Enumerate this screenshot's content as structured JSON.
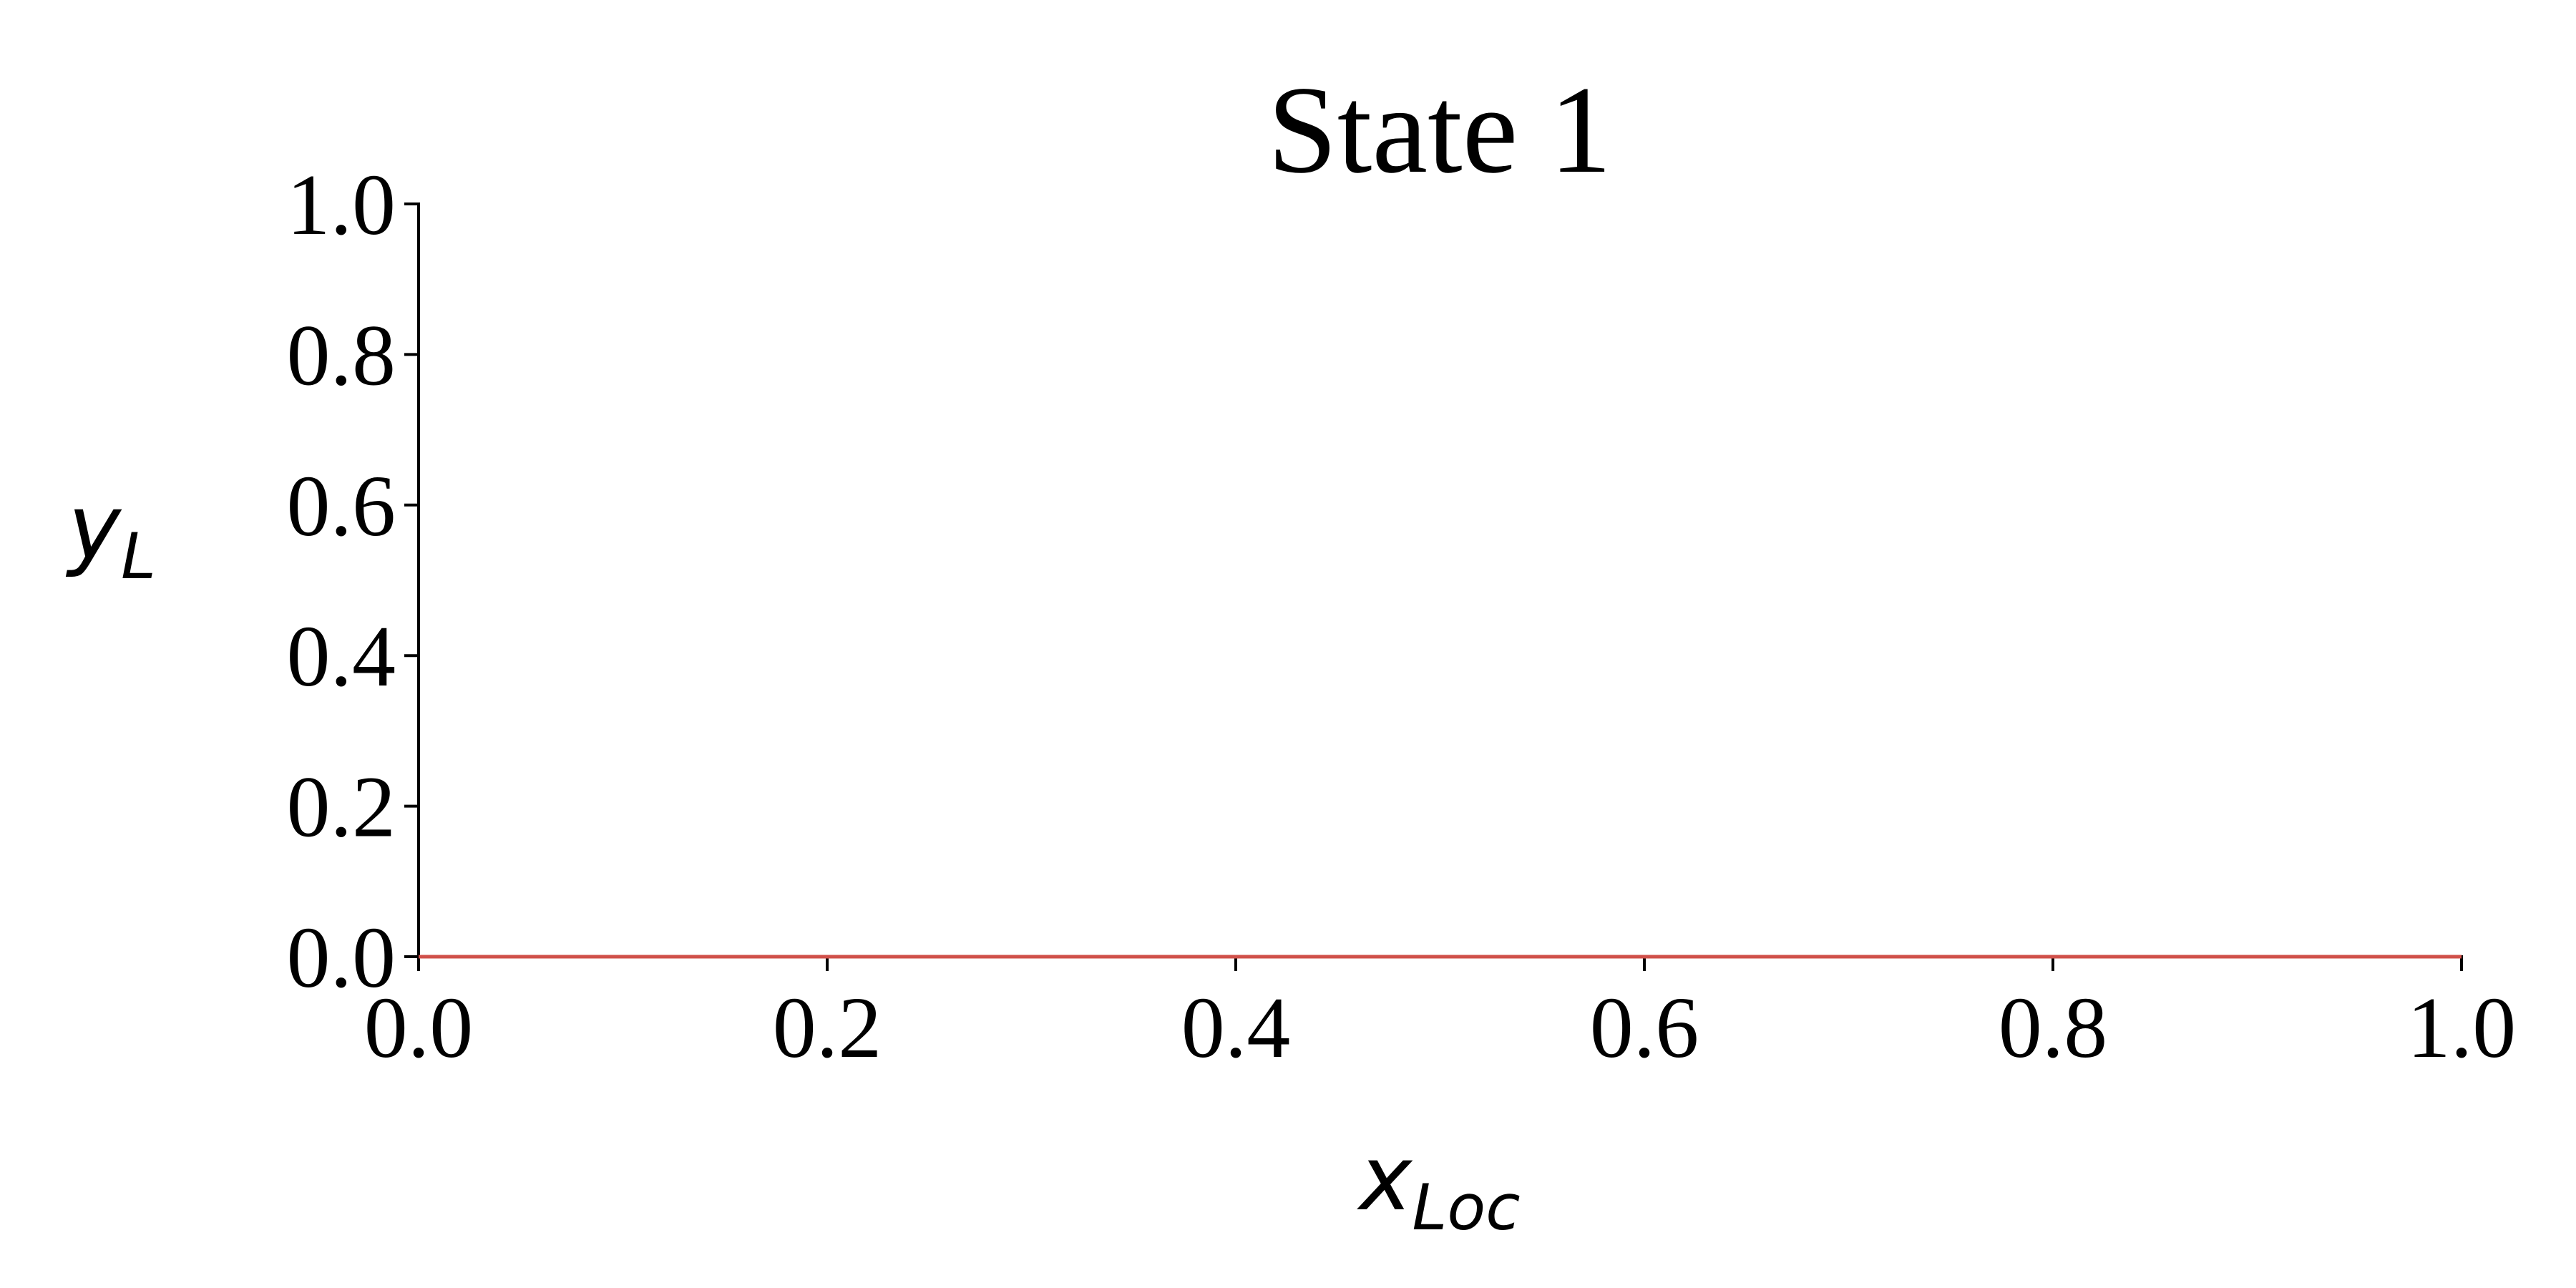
{
  "chart_data": {
    "type": "line",
    "title": "State 1",
    "xlabel": {
      "text": "x",
      "subscript": "Loc"
    },
    "ylabel": {
      "text": "y",
      "subscript": "L"
    },
    "x": [
      0,
      1
    ],
    "values": [
      0,
      0
    ],
    "color": "#d0504a",
    "xlim": [
      0,
      1
    ],
    "ylim": [
      0,
      1
    ],
    "xticks": [
      {
        "value": 0,
        "label": "0.0"
      },
      0.2,
      0.4,
      0.6,
      0.8,
      {
        "value": 1,
        "label": "1.0"
      }
    ],
    "yticks": [
      {
        "value": 0,
        "label": "0.0"
      },
      0.2,
      0.4,
      0.6,
      0.8,
      {
        "value": 1,
        "label": "1.0"
      }
    ],
    "grid": false
  }
}
